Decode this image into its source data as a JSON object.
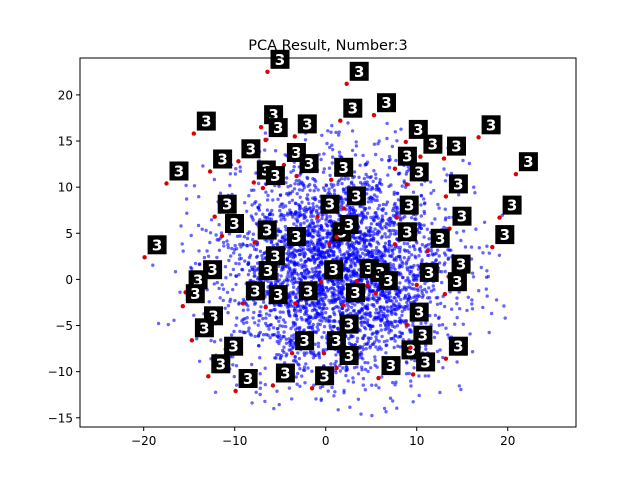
{
  "chart_data": {
    "type": "scatter",
    "title": "PCA Result, Number:3",
    "xlabel": "",
    "ylabel": "",
    "xlim": [
      -27,
      27.5
    ],
    "ylim": [
      -16,
      24
    ],
    "xticks": [
      -20,
      -10,
      0,
      10,
      20
    ],
    "yticks": [
      -15,
      -10,
      -5,
      0,
      5,
      10,
      15,
      20
    ],
    "grid": false,
    "point_color": "#0000ff",
    "thumbnail_label": "3",
    "cloud": {
      "count": 3500,
      "center": [
        1.5,
        1.0
      ],
      "spread": [
        6.2,
        5.8
      ],
      "x_range": [
        -20,
        20
      ],
      "y_range": [
        -15,
        17
      ]
    },
    "thumbnails": [
      {
        "x": -6.4,
        "y": 22.5
      },
      {
        "x": 2.3,
        "y": 21.2
      },
      {
        "x": 1.6,
        "y": 17.2
      },
      {
        "x": 5.3,
        "y": 17.8
      },
      {
        "x": -14.5,
        "y": 15.8
      },
      {
        "x": -7.1,
        "y": 16.5
      },
      {
        "x": -6.6,
        "y": 15.1
      },
      {
        "x": -3.4,
        "y": 15.5
      },
      {
        "x": 8.8,
        "y": 14.9
      },
      {
        "x": 10.4,
        "y": 13.3
      },
      {
        "x": 13.0,
        "y": 13.1
      },
      {
        "x": 16.8,
        "y": 15.4
      },
      {
        "x": -12.7,
        "y": 11.7
      },
      {
        "x": -9.6,
        "y": 12.8
      },
      {
        "x": -4.6,
        "y": 12.4
      },
      {
        "x": -3.2,
        "y": 11.2
      },
      {
        "x": 7.6,
        "y": 12.0
      },
      {
        "x": 20.9,
        "y": 11.4
      },
      {
        "x": -17.5,
        "y": 10.4
      },
      {
        "x": -7.9,
        "y": 10.5
      },
      {
        "x": -6.9,
        "y": 9.9
      },
      {
        "x": 0.6,
        "y": 10.8
      },
      {
        "x": 8.9,
        "y": 10.3
      },
      {
        "x": 13.2,
        "y": 9.0
      },
      {
        "x": -12.2,
        "y": 6.8
      },
      {
        "x": -0.9,
        "y": 6.8
      },
      {
        "x": 2.0,
        "y": 7.7
      },
      {
        "x": 7.8,
        "y": 6.7
      },
      {
        "x": 13.6,
        "y": 5.5
      },
      {
        "x": 19.1,
        "y": 6.7
      },
      {
        "x": -11.4,
        "y": 4.7
      },
      {
        "x": -7.8,
        "y": 4.0
      },
      {
        "x": 0.4,
        "y": 3.8
      },
      {
        "x": 1.2,
        "y": 4.6
      },
      {
        "x": 7.6,
        "y": 3.8
      },
      {
        "x": 11.2,
        "y": 3.1
      },
      {
        "x": 18.3,
        "y": 3.5
      },
      {
        "x": -19.9,
        "y": 2.4
      },
      {
        "x": -4.6,
        "y": 3.3
      },
      {
        "x": -6.9,
        "y": 1.2
      },
      {
        "x": -13.8,
        "y": -0.3
      },
      {
        "x": -7.7,
        "y": -0.4
      },
      {
        "x": -0.5,
        "y": -0.3
      },
      {
        "x": 3.4,
        "y": -0.2
      },
      {
        "x": 4.6,
        "y": -0.6
      },
      {
        "x": 5.5,
        "y": -1.5
      },
      {
        "x": 10.0,
        "y": -0.6
      },
      {
        "x": 13.5,
        "y": 0.3
      },
      {
        "x": 13.1,
        "y": -1.6
      },
      {
        "x": -15.4,
        "y": -1.4
      },
      {
        "x": -15.7,
        "y": -2.9
      },
      {
        "x": -9.1,
        "y": -2.6
      },
      {
        "x": -6.6,
        "y": -3.0
      },
      {
        "x": -3.3,
        "y": -2.6
      },
      {
        "x": 1.9,
        "y": -2.8
      },
      {
        "x": 8.9,
        "y": -4.9
      },
      {
        "x": -13.7,
        "y": -5.3
      },
      {
        "x": -14.7,
        "y": -6.6
      },
      {
        "x": 1.2,
        "y": -6.2
      },
      {
        "x": -3.7,
        "y": -8.0
      },
      {
        "x": -0.2,
        "y": -8.0
      },
      {
        "x": 8.0,
        "y": -9.0
      },
      {
        "x": 9.3,
        "y": -7.4
      },
      {
        "x": 13.2,
        "y": -8.6
      },
      {
        "x": -11.5,
        "y": -8.6
      },
      {
        "x": -12.9,
        "y": -10.5
      },
      {
        "x": 1.2,
        "y": -9.6
      },
      {
        "x": 5.8,
        "y": -10.7
      },
      {
        "x": 9.6,
        "y": -10.3
      },
      {
        "x": -9.9,
        "y": -12.1
      },
      {
        "x": -5.8,
        "y": -11.5
      },
      {
        "x": -1.5,
        "y": -11.8
      }
    ]
  }
}
